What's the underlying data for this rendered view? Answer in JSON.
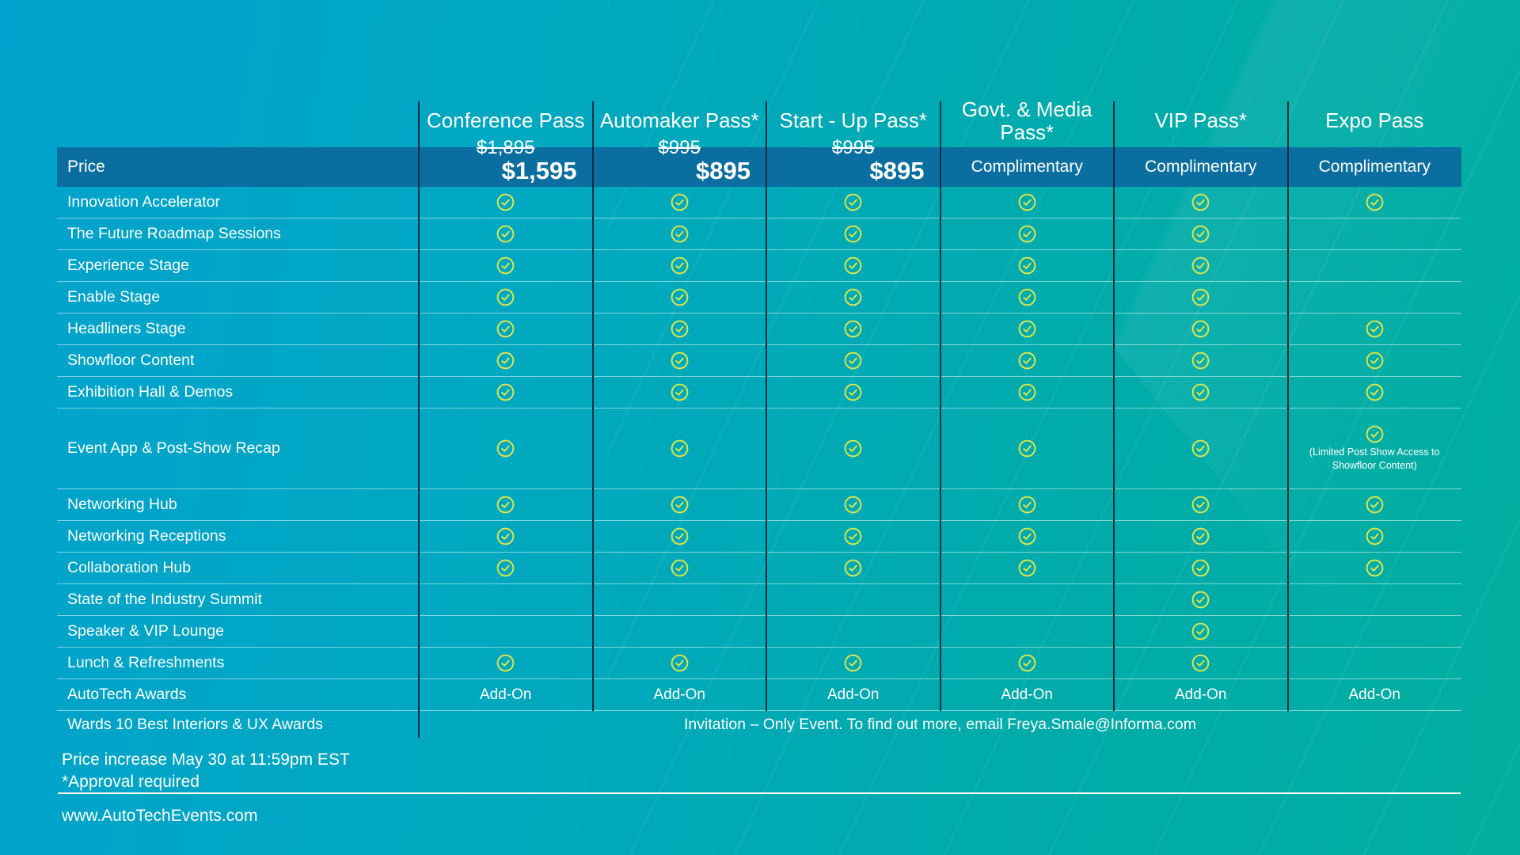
{
  "colors": {
    "background_top_left": "#00a2cd",
    "background_bottom_right": "#01ae9f",
    "price_band": "#0a6fa0",
    "check": "#d9e54e",
    "column_divider": "#082e40",
    "text": "#ffffff"
  },
  "columns": [
    {
      "label": "Conference Pass",
      "price_old": "$1,895",
      "price_new": "$1,595"
    },
    {
      "label": "Automaker Pass*",
      "price_old": "$995",
      "price_new": "$895"
    },
    {
      "label": "Start - Up Pass*",
      "price_old": "$995",
      "price_new": "$895"
    },
    {
      "label": "Govt. & Media Pass*",
      "price_value": "Complimentary"
    },
    {
      "label": "VIP Pass*",
      "price_value": "Complimentary"
    },
    {
      "label": "Expo Pass",
      "price_value": "Complimentary"
    }
  ],
  "price_row_label": "Price",
  "rows": [
    {
      "label": "Innovation Accelerator",
      "cells": [
        "check",
        "check",
        "check",
        "check",
        "check",
        "check"
      ]
    },
    {
      "label": "The Future Roadmap Sessions",
      "cells": [
        "check",
        "check",
        "check",
        "check",
        "check",
        ""
      ]
    },
    {
      "label": "Experience Stage",
      "cells": [
        "check",
        "check",
        "check",
        "check",
        "check",
        ""
      ]
    },
    {
      "label": "Enable Stage",
      "cells": [
        "check",
        "check",
        "check",
        "check",
        "check",
        ""
      ]
    },
    {
      "label": "Headliners Stage",
      "cells": [
        "check",
        "check",
        "check",
        "check",
        "check",
        "check"
      ]
    },
    {
      "label": "Showfloor Content",
      "cells": [
        "check",
        "check",
        "check",
        "check",
        "check",
        "check"
      ]
    },
    {
      "label": "Exhibition Hall & Demos",
      "cells": [
        "check",
        "check",
        "check",
        "check",
        "check",
        "check"
      ]
    },
    {
      "label": "Event App & Post-Show Recap",
      "cells": [
        "check",
        "check",
        "check",
        "check",
        "check",
        "check-note"
      ],
      "tall": true,
      "note": "(Limited Post Show Access to Showfloor Content)"
    },
    {
      "label": "Networking Hub",
      "cells": [
        "check",
        "check",
        "check",
        "check",
        "check",
        "check"
      ]
    },
    {
      "label": "Networking Receptions",
      "cells": [
        "check",
        "check",
        "check",
        "check",
        "check",
        "check"
      ]
    },
    {
      "label": "Collaboration Hub",
      "cells": [
        "check",
        "check",
        "check",
        "check",
        "check",
        "check"
      ]
    },
    {
      "label": "State of the Industry Summit",
      "cells": [
        "",
        "",
        "",
        "",
        "check",
        ""
      ]
    },
    {
      "label": "Speaker & VIP Lounge",
      "cells": [
        "",
        "",
        "",
        "",
        "check",
        ""
      ]
    },
    {
      "label": "Lunch & Refreshments",
      "cells": [
        "check",
        "check",
        "check",
        "check",
        "check",
        ""
      ]
    },
    {
      "label": "AutoTech Awards",
      "cells": [
        "Add-On",
        "Add-On",
        "Add-On",
        "Add-On",
        "Add-On",
        "Add-On"
      ]
    },
    {
      "label": "Wards 10 Best Interiors & UX Awards",
      "span_text": "Invitation – Only Event. To find out more, email Freya.Smale@Informa.com"
    }
  ],
  "footer": {
    "price_increase_note": "Price increase May 30 at 11:59pm EST",
    "approval_note": "*Approval required",
    "website": "www.AutoTechEvents.com"
  }
}
